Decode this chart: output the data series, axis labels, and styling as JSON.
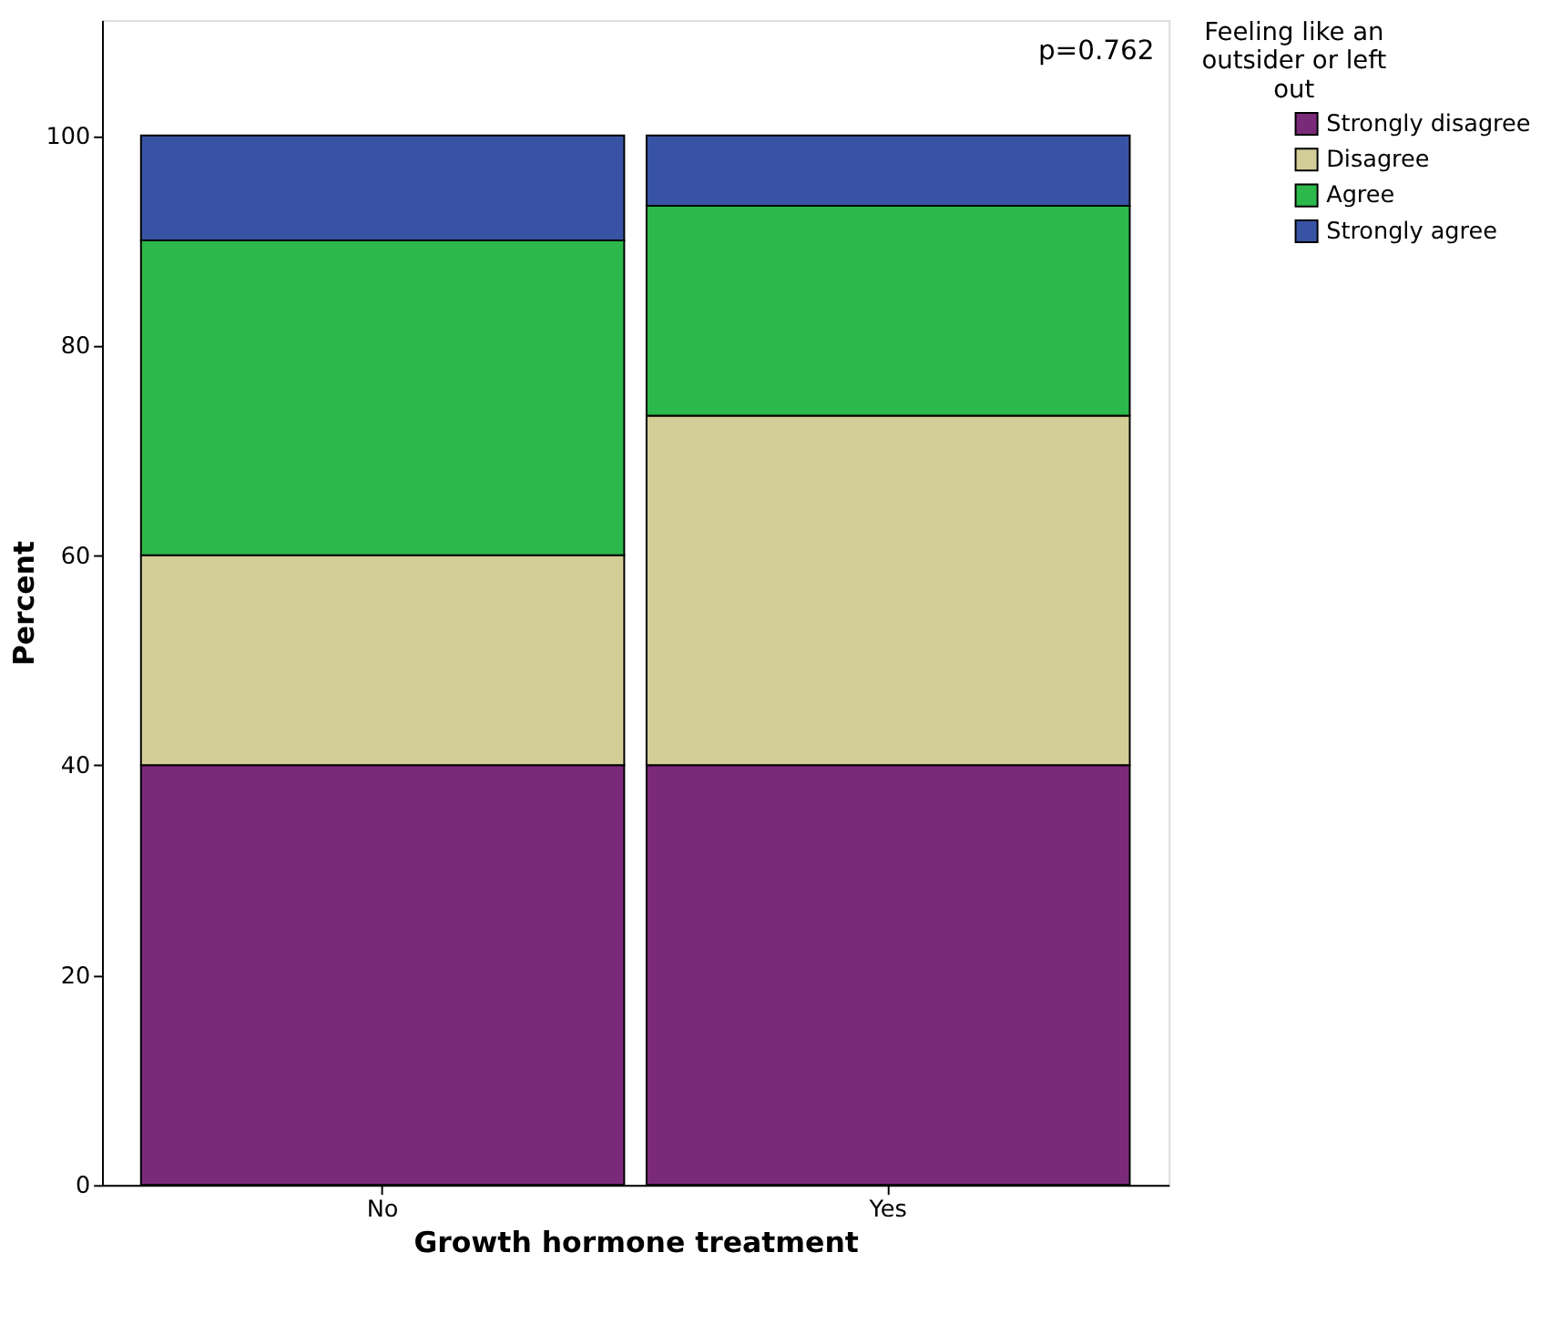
{
  "chart_data": {
    "type": "bar",
    "stacked": true,
    "xlabel": "Growth hormone treatment",
    "ylabel": "Percent",
    "legend_title": "Feeling like an outsider or left out",
    "legend": "right",
    "categories": [
      "No",
      "Yes"
    ],
    "series": [
      {
        "name": "Strongly disagree",
        "color": "#7b2a7a",
        "values": [
          40,
          40
        ]
      },
      {
        "name": "Disagree",
        "color": "#d3ce97",
        "values": [
          20,
          33.3
        ]
      },
      {
        "name": "Agree",
        "color": "#2db84b",
        "values": [
          30,
          20
        ]
      },
      {
        "name": "Strongly agree",
        "color": "#3953a4",
        "values": [
          10,
          6.7
        ]
      }
    ],
    "ylim": [
      0,
      111
    ],
    "yticks": [
      0,
      20,
      40,
      60,
      80,
      100
    ],
    "grid": false,
    "annotations": [
      "p=0.762"
    ]
  }
}
